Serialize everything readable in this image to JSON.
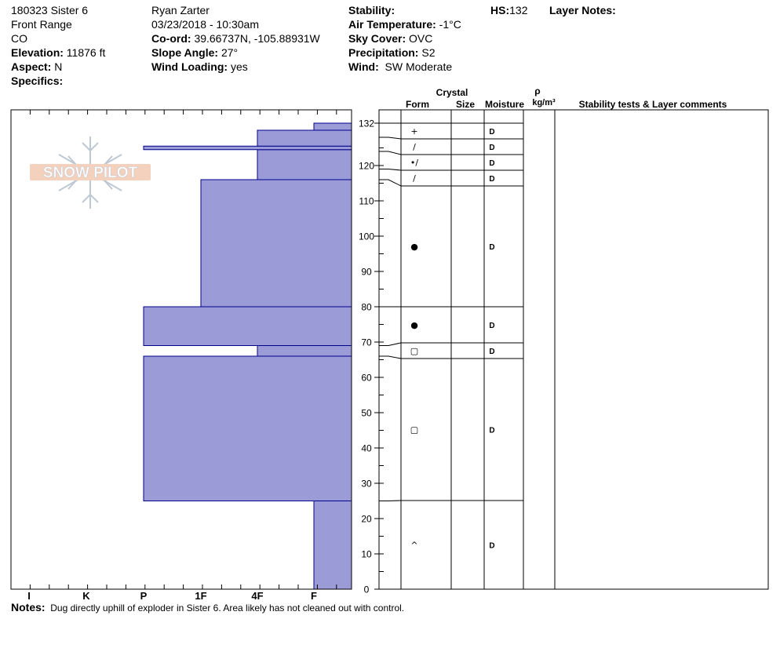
{
  "header": {
    "col1": {
      "title": "180323 Sister 6",
      "range": "Front Range",
      "state": "CO",
      "elevation_label": "Elevation:",
      "elevation": "11876 ft",
      "aspect_label": "Aspect:",
      "aspect": "N",
      "specifics_label": "Specifics:",
      "specifics": ""
    },
    "col2": {
      "observer": "Ryan Zarter",
      "datetime": "03/23/2018 - 10:30am",
      "coord_label": "Co-ord:",
      "coord": "39.66737N, -105.88931W",
      "slope_label": "Slope Angle:",
      "slope": "27°",
      "wind_loading_label": "Wind Loading:",
      "wind_loading": "yes"
    },
    "col3": {
      "stability_label": "Stability:",
      "stability": "",
      "air_temp_label": "Air Temperature:",
      "air_temp": "-1°C",
      "sky_label": "Sky Cover:",
      "sky": "OVC",
      "precip_label": "Precipitation:",
      "precip": "S2",
      "wind_label": "Wind:",
      "wind": "SW Moderate"
    },
    "hs_label": "HS:",
    "hs": "132",
    "layer_notes_label": "Layer Notes:"
  },
  "logo_text": "SNOW PILOT",
  "table_headers": {
    "crystal": "Crystal",
    "form": "Form",
    "size": "Size",
    "moisture": "Moisture",
    "rho": "ρ",
    "density_unit": "kg/m³",
    "comments": "Stability tests & Layer comments"
  },
  "notes_label": "Notes:",
  "notes": "Dug directly uphill of exploder in Sister 6.  Area likely has not cleaned out with control.",
  "colors": {
    "layer_fill": "#9b9bd8",
    "layer_stroke": "#00008b"
  },
  "chart_data": {
    "type": "area",
    "description_x": "hand hardness",
    "x_tick_labels": [
      "I",
      "K",
      "P",
      "1F",
      "4F",
      "F"
    ],
    "y_ticks": [
      0,
      10,
      20,
      30,
      40,
      50,
      60,
      70,
      80,
      90,
      100,
      110,
      120,
      132
    ],
    "ylim": [
      0,
      132
    ],
    "hardness_profile": [
      {
        "bottom": 0,
        "top": 25,
        "hardness": "F"
      },
      {
        "bottom": 25,
        "top": 66,
        "hardness": "P"
      },
      {
        "bottom": 66,
        "top": 69,
        "hardness": "4F"
      },
      {
        "bottom": 69,
        "top": 80,
        "hardness": "P"
      },
      {
        "bottom": 80,
        "top": 116,
        "hardness": "1F"
      },
      {
        "bottom": 116,
        "top": 124.5,
        "hardness": "4F"
      },
      {
        "bottom": 124.5,
        "top": 125.5,
        "hardness": "P"
      },
      {
        "bottom": 125.5,
        "top": 130,
        "hardness": "4F"
      },
      {
        "bottom": 130,
        "top": 132,
        "hardness": "F"
      }
    ],
    "layers": [
      {
        "top": 132,
        "bottom": 128,
        "form": "+",
        "moisture": "D"
      },
      {
        "top": 128,
        "bottom": 124,
        "form": "/",
        "moisture": "D"
      },
      {
        "top": 124,
        "bottom": 119,
        "form": "•/",
        "moisture": "D"
      },
      {
        "top": 119,
        "bottom": 116,
        "form": "/",
        "moisture": "D"
      },
      {
        "top": 116,
        "bottom": 80,
        "form": "●",
        "moisture": "D"
      },
      {
        "top": 80,
        "bottom": 69,
        "form": "●",
        "moisture": "D"
      },
      {
        "top": 69,
        "bottom": 66,
        "form": "▢",
        "moisture": "D"
      },
      {
        "top": 66,
        "bottom": 25,
        "form": "▢",
        "moisture": "D"
      },
      {
        "top": 25,
        "bottom": 0,
        "form": "^",
        "moisture": "D"
      }
    ]
  }
}
